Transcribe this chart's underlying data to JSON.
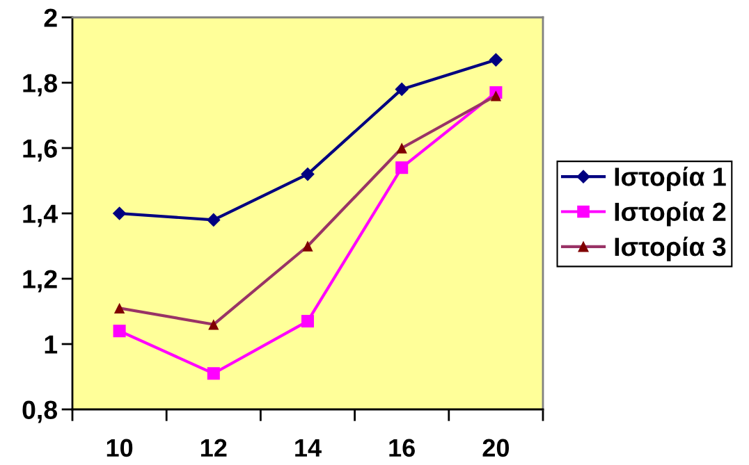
{
  "chart_data": {
    "type": "line",
    "categories": [
      "10",
      "12",
      "14",
      "16",
      "20"
    ],
    "series": [
      {
        "name": "Ιστορία 1",
        "color": "#000080",
        "marker": "diamond",
        "values": [
          1.4,
          1.38,
          1.52,
          1.78,
          1.87
        ]
      },
      {
        "name": "Ιστορία 2",
        "color": "#ff00ff",
        "marker": "square",
        "values": [
          1.04,
          0.91,
          1.07,
          1.54,
          1.77
        ]
      },
      {
        "name": "Ιστορία 3",
        "color": "#993366",
        "colors": [
          "#800000",
          "#800000",
          "#800000",
          "#800000",
          "#800000"
        ],
        "marker": "triangle",
        "values": [
          1.11,
          1.06,
          1.3,
          1.6,
          1.76
        ]
      }
    ],
    "ylim": [
      0.8,
      2
    ],
    "yticks": [
      {
        "value": 0.8,
        "label": "0,8"
      },
      1,
      {
        "value": 1.2,
        "label": "1,2"
      },
      {
        "value": 1.4,
        "label": "1,4"
      },
      {
        "value": 1.6,
        "label": "1,6"
      },
      {
        "value": 1.8,
        "label": "1,8"
      },
      2
    ],
    "grid": false,
    "legend": "right",
    "line_style": "solid"
  }
}
